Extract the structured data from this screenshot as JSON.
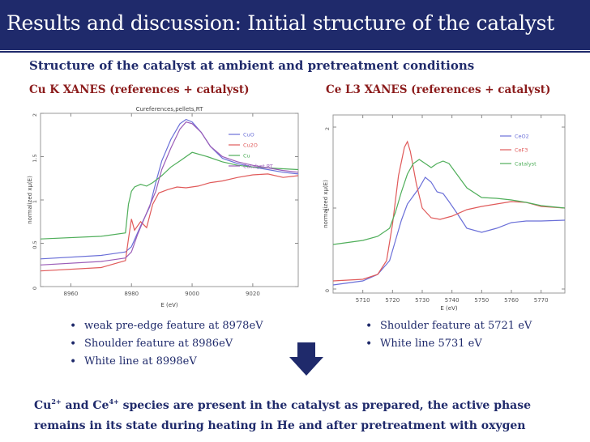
{
  "slide": {
    "title": "Results and discussion: Initial structure of the catalyst",
    "subtitle": "Structure of the catalyst at ambient and pretreatment conditions",
    "left_label": "Cu K XANES (references + catalyst)",
    "right_label": "Ce L3 XANES (references + catalyst)",
    "left_bullets": [
      " weak pre-edge feature at 8978eV",
      "Shoulder  feature at 8986eV",
      "White line at 8998eV"
    ],
    "right_bullets": [
      "Shoulder  feature at 5721 eV",
      "White line 5731 eV"
    ],
    "conclusion": {
      "cu": "Cu",
      "cu_sup": "2+",
      "and_ce": " and Ce",
      "ce_sup": "4+",
      "line1_rest": " species are present in the catalyst as prepared,  the active phase",
      "line2": "remains in its state during heating in He and after pretreatment with oxygen"
    },
    "colors": {
      "title_bg": "#1f2a6b",
      "text_blue": "#1f2a6b",
      "label_red": "#8b1b1b"
    }
  },
  "chart_data": [
    {
      "type": "line",
      "title": "Cureferences,pellets,RT",
      "xlabel": "E  (eV)",
      "ylabel": "normalized xμ(E)",
      "xlim": [
        8950,
        9035
      ],
      "ylim": [
        0,
        2.0
      ],
      "xticks": [
        8960,
        8980,
        9000,
        9020
      ],
      "yticks": [
        0,
        0.5,
        1,
        1.5,
        2
      ],
      "legend_position": "top-right",
      "series": [
        {
          "name": "CuO",
          "color": "#6a6fd8",
          "x": [
            8950,
            8970,
            8978,
            8980,
            8983,
            8986,
            8988,
            8990,
            8993,
            8996,
            8998,
            9000,
            9003,
            9006,
            9010,
            9015,
            9020,
            9025,
            9030,
            9035
          ],
          "y": [
            0.32,
            0.36,
            0.4,
            0.46,
            0.7,
            0.92,
            1.2,
            1.45,
            1.7,
            1.88,
            1.93,
            1.9,
            1.78,
            1.62,
            1.48,
            1.42,
            1.38,
            1.35,
            1.32,
            1.3
          ]
        },
        {
          "name": "Cu2O",
          "color": "#e05a5a",
          "x": [
            8950,
            8970,
            8978,
            8979,
            8980,
            8981,
            8983,
            8985,
            8987,
            8989,
            8992,
            8995,
            8998,
            9002,
            9006,
            9010,
            9015,
            9020,
            9025,
            9030,
            9035
          ],
          "y": [
            0.18,
            0.22,
            0.3,
            0.55,
            0.78,
            0.65,
            0.75,
            0.68,
            0.95,
            1.08,
            1.12,
            1.15,
            1.14,
            1.16,
            1.2,
            1.22,
            1.26,
            1.29,
            1.3,
            1.26,
            1.28
          ]
        },
        {
          "name": "Cu",
          "color": "#4fae5a",
          "x": [
            8950,
            8970,
            8978,
            8979,
            8980,
            8981,
            8983,
            8985,
            8987,
            8990,
            8993,
            8996,
            9000,
            9005,
            9010,
            9015,
            9020,
            9025,
            9030,
            9035
          ],
          "y": [
            0.55,
            0.58,
            0.62,
            0.95,
            1.1,
            1.15,
            1.18,
            1.16,
            1.2,
            1.28,
            1.38,
            1.45,
            1.55,
            1.5,
            1.44,
            1.4,
            1.38,
            1.37,
            1.36,
            1.35
          ]
        },
        {
          "name": "Catalyst,RT",
          "color": "#9b5db8",
          "x": [
            8950,
            8970,
            8978,
            8980,
            8982,
            8985,
            8988,
            8990,
            8993,
            8996,
            8998,
            9000,
            9003,
            9006,
            9010,
            9015,
            9020,
            9025,
            9030,
            9035
          ],
          "y": [
            0.25,
            0.29,
            0.33,
            0.4,
            0.6,
            0.85,
            1.1,
            1.35,
            1.6,
            1.82,
            1.9,
            1.88,
            1.78,
            1.62,
            1.5,
            1.44,
            1.4,
            1.37,
            1.34,
            1.32
          ]
        }
      ]
    },
    {
      "type": "line",
      "title": "",
      "xlabel": "E  (eV)",
      "ylabel": "normalized xμ(E)",
      "xlim": [
        5700,
        5778
      ],
      "ylim": [
        -0.05,
        2.15
      ],
      "xticks": [
        5710,
        5720,
        5730,
        5740,
        5750,
        5760,
        5770
      ],
      "yticks": [
        0,
        1,
        2
      ],
      "legend_position": "top-right",
      "series": [
        {
          "name": "CeO2",
          "color": "#6a6fd8",
          "x": [
            5700,
            5710,
            5715,
            5719,
            5721,
            5723,
            5725,
            5727,
            5729,
            5731,
            5733,
            5735,
            5737,
            5739,
            5742,
            5745,
            5750,
            5755,
            5760,
            5765,
            5770,
            5778
          ],
          "y": [
            0.05,
            0.1,
            0.18,
            0.35,
            0.6,
            0.85,
            1.05,
            1.15,
            1.25,
            1.38,
            1.32,
            1.2,
            1.18,
            1.08,
            0.92,
            0.75,
            0.7,
            0.75,
            0.82,
            0.84,
            0.84,
            0.85
          ]
        },
        {
          "name": "CeF3",
          "color": "#e05a5a",
          "x": [
            5700,
            5710,
            5715,
            5718,
            5720,
            5722,
            5724,
            5725,
            5726,
            5728,
            5730,
            5733,
            5736,
            5740,
            5745,
            5750,
            5755,
            5760,
            5765,
            5770,
            5778
          ],
          "y": [
            0.1,
            0.12,
            0.18,
            0.35,
            0.8,
            1.4,
            1.75,
            1.82,
            1.7,
            1.3,
            1.0,
            0.88,
            0.86,
            0.9,
            0.98,
            1.02,
            1.05,
            1.08,
            1.07,
            1.02,
            1.0
          ]
        },
        {
          "name": "Catalyst",
          "color": "#4fae5a",
          "x": [
            5700,
            5710,
            5715,
            5719,
            5721,
            5723,
            5725,
            5727,
            5729,
            5731,
            5733,
            5735,
            5737,
            5739,
            5742,
            5745,
            5750,
            5755,
            5760,
            5765,
            5770,
            5778
          ],
          "y": [
            0.55,
            0.6,
            0.65,
            0.75,
            0.95,
            1.2,
            1.42,
            1.55,
            1.6,
            1.55,
            1.5,
            1.55,
            1.58,
            1.55,
            1.4,
            1.25,
            1.13,
            1.12,
            1.1,
            1.07,
            1.03,
            1.0
          ]
        }
      ]
    }
  ]
}
